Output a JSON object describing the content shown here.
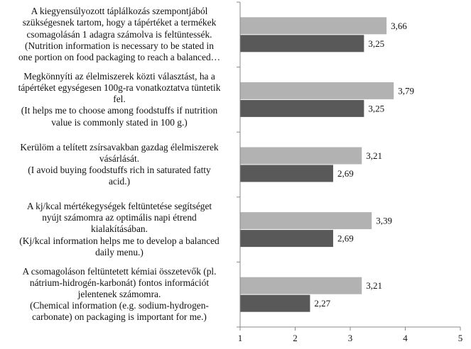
{
  "chart_data": {
    "type": "bar",
    "orientation": "horizontal",
    "categories": [
      "A kiegyensúlyozott táplálkozás szempontjából\nszükségesnek tartom, hogy a tápértéket a termékek\ncsomagolásán 1 adagra számolva is feltüntessék.\n(Nutrition information is necessary to be stated in\none portion on food packaging to reach a balanced…",
      "Megkönnyíti az élelmiszerek közti választást, ha a\ntápértéket egységesen 100g-ra vonatkoztatva tüntetik\nfel.\n(It helps me to choose among foodstuffs if nutrition\nvalue is commonly stated in 100 g.)",
      "Kerülöm a telített zsírsavakban gazdag élelmiszerek\nvásárlását.\n(I avoid buying foodstuffs rich in saturated fatty\nacid.)",
      "A kj/kcal mértékegységek feltüntetése segítséget\nnyújt számomra az optimális napi étrend\nkialakításában.\n(Kj/kcal information helps me to develop a balanced\ndaily menu.)",
      "A csomagoláson feltüntetett kémiai összetevők (pl.\nnátrium-hidrogén-karbonát) fontos információt\njelentenek számomra.\n(Chemical information (e.g. sodium-hydrogen-\ncarbonate) on packaging is important for me.)"
    ],
    "series": [
      {
        "values": [
          3.66,
          3.79,
          3.21,
          3.39,
          3.21
        ],
        "labels": [
          "3,66",
          "3,79",
          "3,21",
          "3,39",
          "3,21"
        ],
        "color": "#b2b2b2"
      },
      {
        "values": [
          3.25,
          3.25,
          2.69,
          2.69,
          2.27
        ],
        "labels": [
          "3,25",
          "3,25",
          "2,69",
          "2,69",
          "2,27"
        ],
        "color": "#595959"
      }
    ],
    "xlim": [
      1,
      5
    ],
    "xticks": [
      1,
      2,
      3,
      4,
      5
    ],
    "xtick_labels": [
      "1",
      "2",
      "3",
      "4",
      "5"
    ],
    "grid": false,
    "legend": "none"
  }
}
